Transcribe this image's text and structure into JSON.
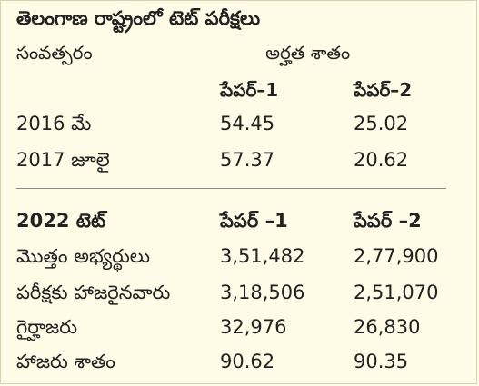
{
  "title": "తెలంగాణ రాష్ట్రంలో టెట్ పరీక్షలు",
  "table1": {
    "year_header": "సంవత్సరం",
    "qualify_header": "అర్హత శాతం",
    "paper1_header": "పేపర్–1",
    "paper2_header": "పేపర్–2",
    "rows": [
      {
        "label": "2016 మే",
        "paper1": "54.45",
        "paper2": "25.02"
      },
      {
        "label": "2017 జూలై",
        "paper1": "57.37",
        "paper2": "20.62"
      }
    ]
  },
  "table2": {
    "header_label": "2022 టెట్",
    "paper1_header": "పేపర్ –1",
    "paper2_header": "పేపర్ –2",
    "rows": [
      {
        "label": "మొత్తం అభ్యర్థులు",
        "paper1": "3,51,482",
        "paper2": "2,77,900"
      },
      {
        "label": "పరీక్షకు హాజరైనవారు",
        "paper1": "3,18,506",
        "paper2": "2,51,070"
      },
      {
        "label": "గైర్హాజరు",
        "paper1": "32,976",
        "paper2": "26,830"
      },
      {
        "label": "హాజరు శాతం",
        "paper1": "90.62",
        "paper2": "90.35"
      }
    ]
  }
}
